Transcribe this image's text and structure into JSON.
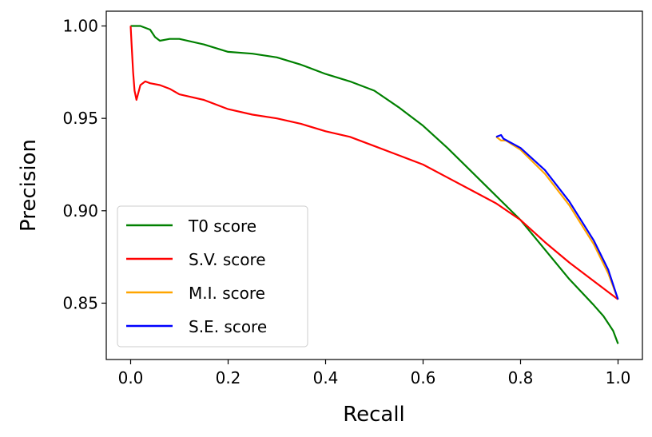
{
  "chart_data": {
    "type": "line",
    "title": "",
    "xlabel": "Recall",
    "ylabel": "Precision",
    "xlim": [
      -0.05,
      1.05
    ],
    "ylim": [
      0.8195,
      1.008
    ],
    "xticks": [
      0.0,
      0.2,
      0.4,
      0.6,
      0.8,
      1.0
    ],
    "xtick_labels": [
      "0.0",
      "0.2",
      "0.4",
      "0.6",
      "0.8",
      "1.0"
    ],
    "yticks": [
      0.85,
      0.9,
      0.95,
      1.0
    ],
    "ytick_labels": [
      "0.85",
      "0.90",
      "0.95",
      "1.00"
    ],
    "grid": false,
    "legend_position": "lower-left",
    "series": [
      {
        "name": "T0 score",
        "color": "#008000",
        "x": [
          0.0,
          0.02,
          0.04,
          0.05,
          0.06,
          0.08,
          0.1,
          0.15,
          0.2,
          0.25,
          0.3,
          0.35,
          0.4,
          0.45,
          0.5,
          0.55,
          0.6,
          0.65,
          0.7,
          0.75,
          0.8,
          0.85,
          0.9,
          0.95,
          0.97,
          0.99,
          1.0
        ],
        "y": [
          1.0,
          1.0,
          0.998,
          0.994,
          0.992,
          0.993,
          0.993,
          0.99,
          0.986,
          0.985,
          0.983,
          0.979,
          0.974,
          0.97,
          0.965,
          0.956,
          0.946,
          0.934,
          0.921,
          0.908,
          0.895,
          0.879,
          0.863,
          0.849,
          0.843,
          0.835,
          0.828
        ]
      },
      {
        "name": "S.V. score",
        "color": "#ff0000",
        "x": [
          0.0,
          0.002,
          0.005,
          0.008,
          0.012,
          0.02,
          0.03,
          0.04,
          0.06,
          0.08,
          0.1,
          0.15,
          0.2,
          0.25,
          0.3,
          0.35,
          0.4,
          0.45,
          0.5,
          0.55,
          0.6,
          0.65,
          0.7,
          0.75,
          0.8,
          0.85,
          0.9,
          0.95,
          1.0
        ],
        "y": [
          1.0,
          0.99,
          0.975,
          0.965,
          0.96,
          0.968,
          0.97,
          0.969,
          0.968,
          0.966,
          0.963,
          0.96,
          0.955,
          0.952,
          0.95,
          0.947,
          0.943,
          0.94,
          0.935,
          0.93,
          0.925,
          0.918,
          0.911,
          0.904,
          0.895,
          0.883,
          0.872,
          0.862,
          0.852
        ]
      },
      {
        "name": "M.I. score",
        "color": "#ffa500",
        "x": [
          0.75,
          0.76,
          0.77,
          0.8,
          0.85,
          0.9,
          0.95,
          0.98,
          1.0
        ],
        "y": [
          0.94,
          0.938,
          0.938,
          0.933,
          0.92,
          0.903,
          0.882,
          0.866,
          0.852
        ]
      },
      {
        "name": "S.E. score",
        "color": "#0000ff",
        "x": [
          0.75,
          0.76,
          0.765,
          0.8,
          0.85,
          0.9,
          0.95,
          0.98,
          1.0
        ],
        "y": [
          0.94,
          0.941,
          0.939,
          0.934,
          0.922,
          0.905,
          0.884,
          0.868,
          0.852
        ]
      }
    ]
  }
}
